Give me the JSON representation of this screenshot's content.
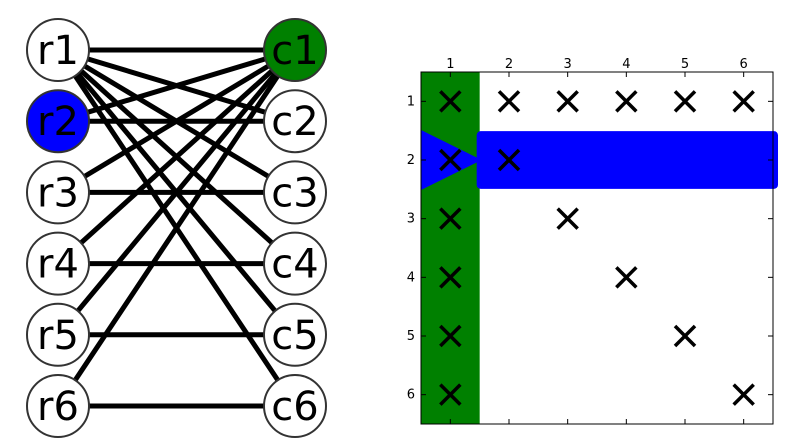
{
  "graph": {
    "row_nodes": [
      {
        "label": "r1",
        "fill": "#ffffff",
        "text_color": "#000000"
      },
      {
        "label": "r2",
        "fill": "#0000ff",
        "text_color": "#000000"
      },
      {
        "label": "r3",
        "fill": "#ffffff",
        "text_color": "#000000"
      },
      {
        "label": "r4",
        "fill": "#ffffff",
        "text_color": "#000000"
      },
      {
        "label": "r5",
        "fill": "#ffffff",
        "text_color": "#000000"
      },
      {
        "label": "r6",
        "fill": "#ffffff",
        "text_color": "#000000"
      }
    ],
    "col_nodes": [
      {
        "label": "c1",
        "fill": "#008000",
        "text_color": "#000000"
      },
      {
        "label": "c2",
        "fill": "#ffffff",
        "text_color": "#000000"
      },
      {
        "label": "c3",
        "fill": "#ffffff",
        "text_color": "#000000"
      },
      {
        "label": "c4",
        "fill": "#ffffff",
        "text_color": "#000000"
      },
      {
        "label": "c5",
        "fill": "#ffffff",
        "text_color": "#000000"
      },
      {
        "label": "c6",
        "fill": "#ffffff",
        "text_color": "#000000"
      }
    ],
    "edges": [
      [
        "r1",
        "c1"
      ],
      [
        "r1",
        "c2"
      ],
      [
        "r1",
        "c3"
      ],
      [
        "r1",
        "c4"
      ],
      [
        "r1",
        "c5"
      ],
      [
        "r1",
        "c6"
      ],
      [
        "r2",
        "c1"
      ],
      [
        "r2",
        "c2"
      ],
      [
        "r3",
        "c1"
      ],
      [
        "r3",
        "c3"
      ],
      [
        "r4",
        "c1"
      ],
      [
        "r4",
        "c4"
      ],
      [
        "r5",
        "c1"
      ],
      [
        "r5",
        "c5"
      ],
      [
        "r6",
        "c1"
      ],
      [
        "r6",
        "c6"
      ]
    ]
  },
  "matrix": {
    "col_ticks": [
      "1",
      "2",
      "3",
      "4",
      "5",
      "6"
    ],
    "row_ticks": [
      "1",
      "2",
      "3",
      "4",
      "5",
      "6"
    ],
    "highlight_column": 1,
    "highlight_column_color": "#008000",
    "highlight_row": 2,
    "highlight_row_color": "#0000ff",
    "marker": "×",
    "nonzeros": [
      [
        1,
        1
      ],
      [
        1,
        2
      ],
      [
        1,
        3
      ],
      [
        1,
        4
      ],
      [
        1,
        5
      ],
      [
        1,
        6
      ],
      [
        2,
        1
      ],
      [
        2,
        2
      ],
      [
        3,
        1
      ],
      [
        3,
        3
      ],
      [
        4,
        1
      ],
      [
        4,
        4
      ],
      [
        5,
        1
      ],
      [
        5,
        5
      ],
      [
        6,
        1
      ],
      [
        6,
        6
      ]
    ]
  }
}
